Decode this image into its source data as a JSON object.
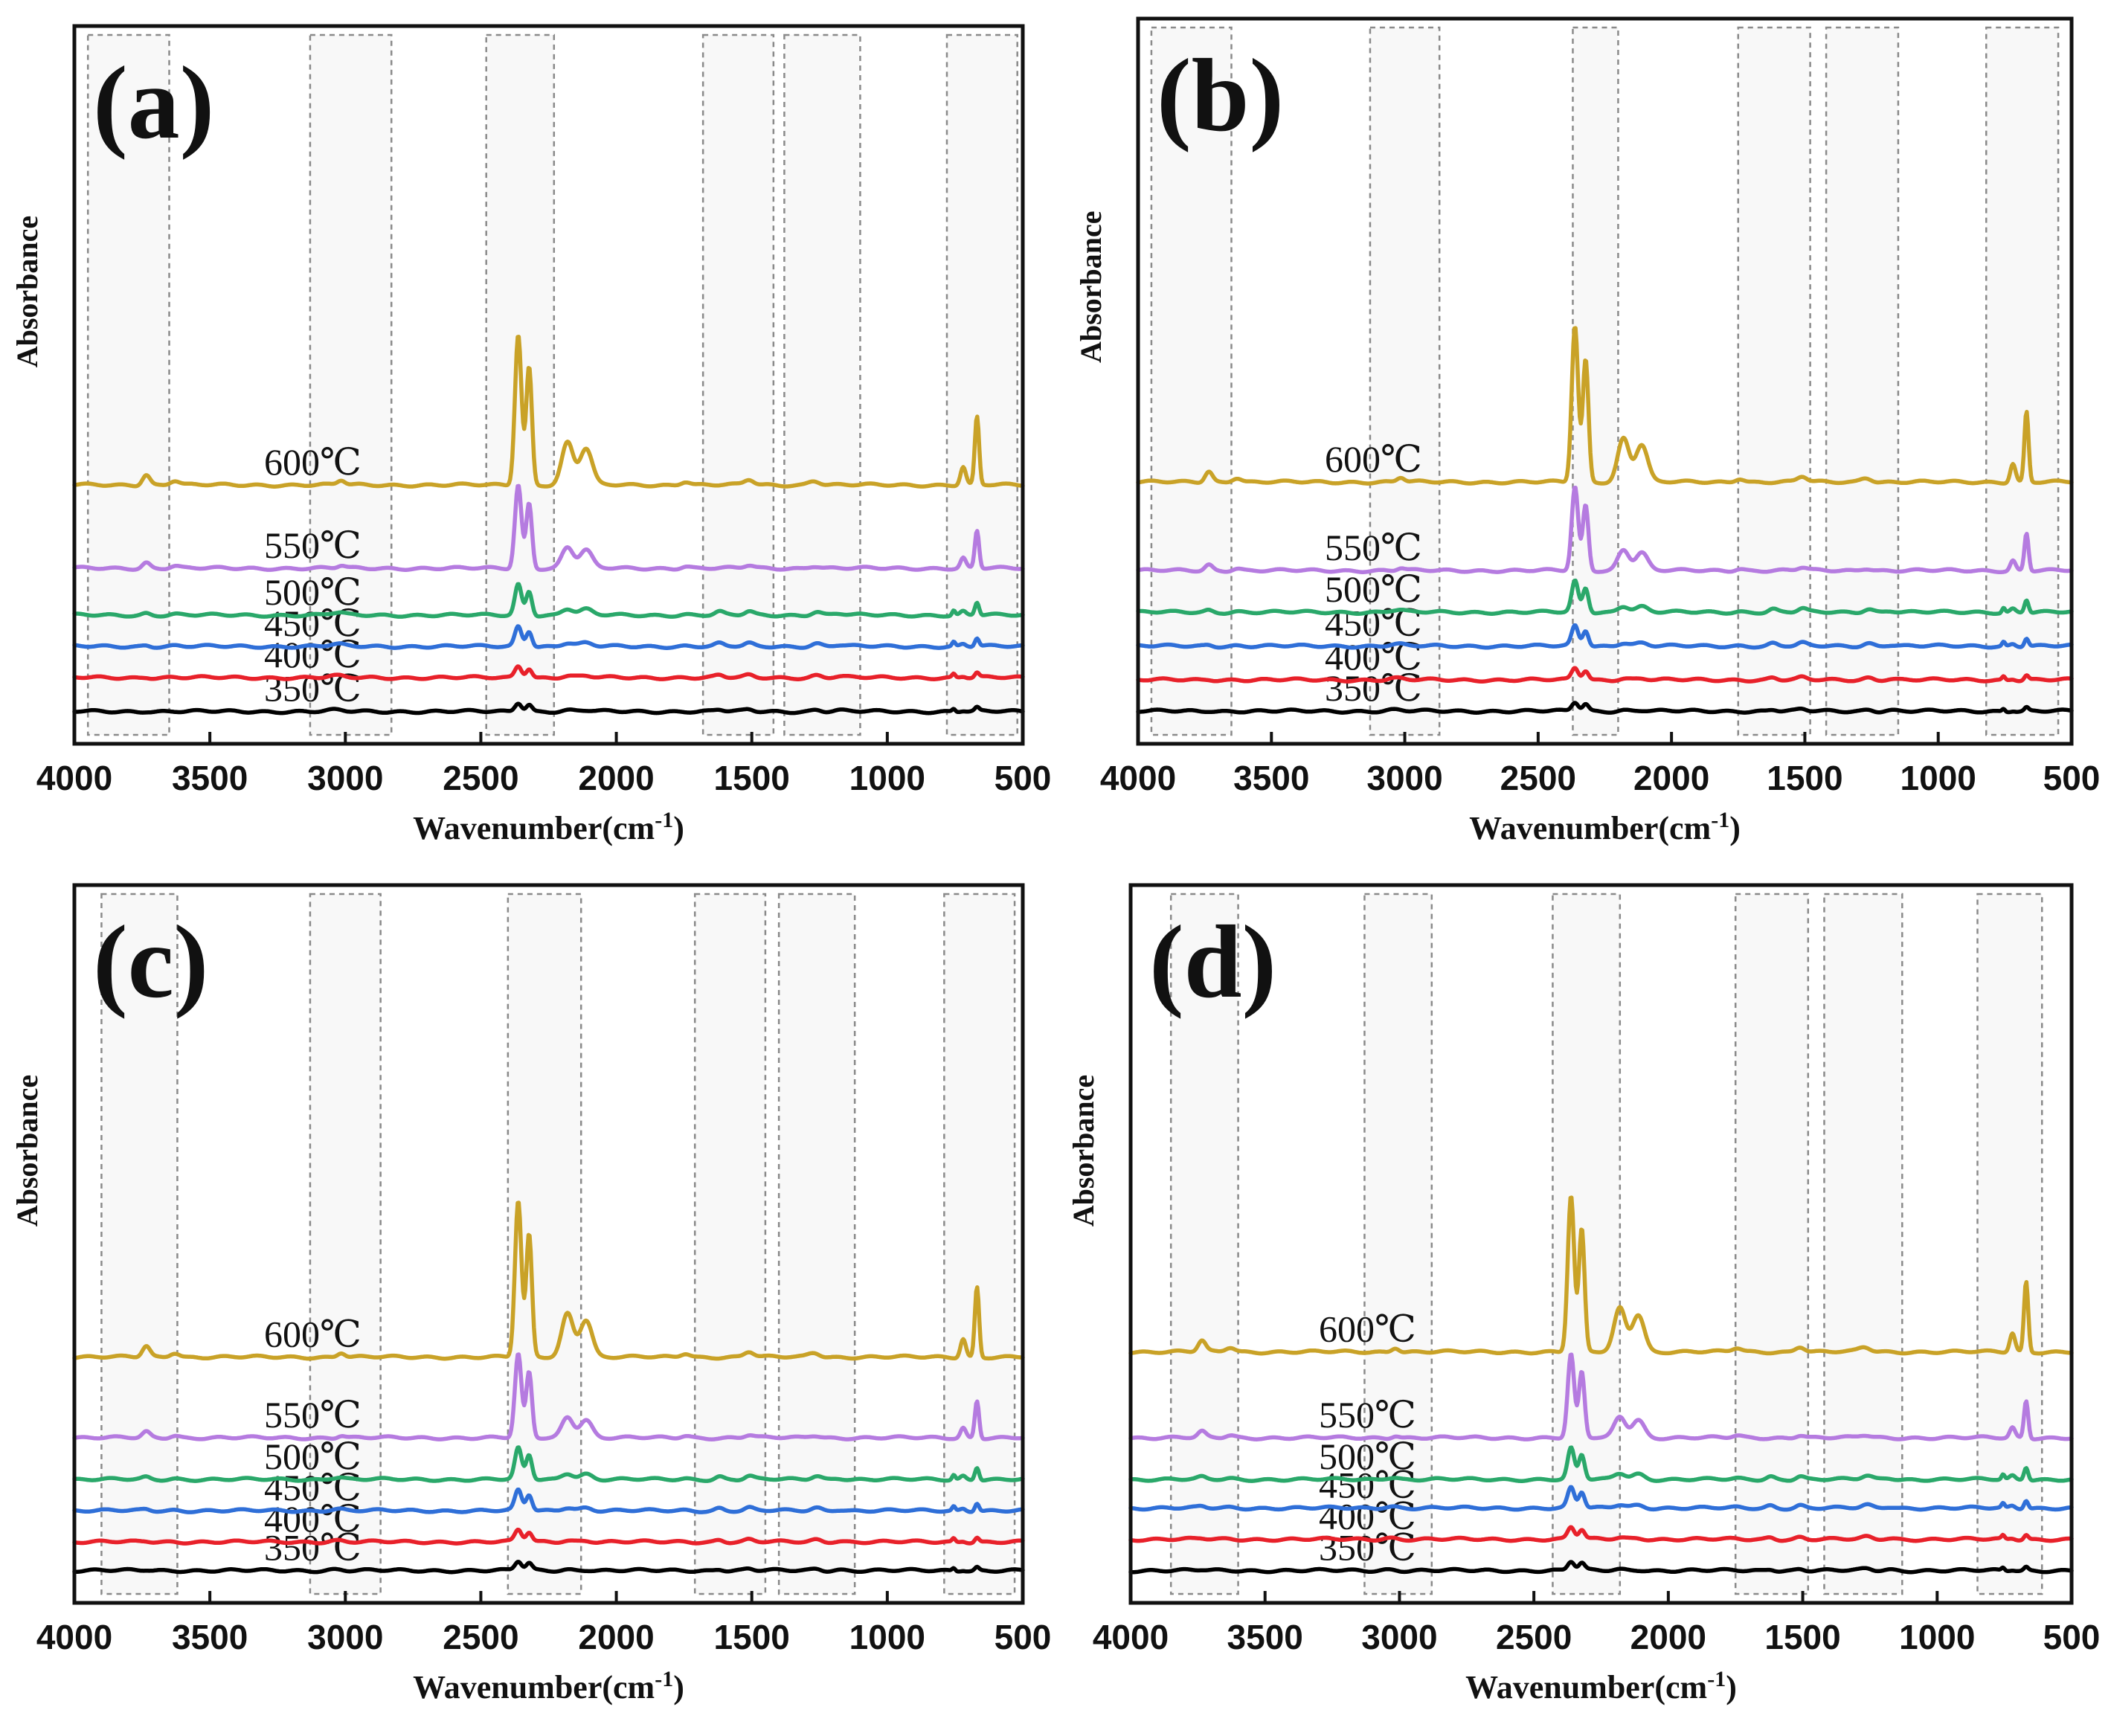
{
  "figure": {
    "title": ""
  },
  "chart_data": [
    {
      "type": "line",
      "panel_label": "(a)",
      "title": "",
      "xlabel": "Wavenumber(cm",
      "xlabel_sup": "-1",
      "xlabel_close": ")",
      "ylabel": "Absorbance",
      "xlim": [
        4000,
        500
      ],
      "x_ticks": [
        "4000",
        "3500",
        "3000",
        "2500",
        "2000",
        "1500",
        "1000",
        "500"
      ],
      "series": [
        {
          "name": "350℃",
          "color": "#000000",
          "offset": 0.0,
          "scale": 0.15
        },
        {
          "name": "400℃",
          "color": "#e8212a",
          "offset": 0.65,
          "scale": 0.2
        },
        {
          "name": "450℃",
          "color": "#2f6fd8",
          "offset": 1.25,
          "scale": 0.35
        },
        {
          "name": "500℃",
          "color": "#2aa86a",
          "offset": 1.85,
          "scale": 0.55
        },
        {
          "name": "550℃",
          "color": "#b57be0",
          "offset": 2.75,
          "scale": 1.6
        },
        {
          "name": "600℃",
          "color": "#c9a227",
          "offset": 4.35,
          "scale": 2.9
        }
      ],
      "highlight_bands": [
        [
          3950,
          3650
        ],
        [
          3130,
          2830
        ],
        [
          2480,
          2230
        ],
        [
          1680,
          1420
        ],
        [
          1380,
          1100
        ],
        [
          780,
          520
        ]
      ]
    },
    {
      "type": "line",
      "panel_label": "(b)",
      "title": "",
      "xlabel": "Wavenumber(cm",
      "xlabel_sup": "-1",
      "xlabel_close": ")",
      "ylabel": "Absorbance",
      "xlim": [
        4000,
        500
      ],
      "x_ticks": [
        "4000",
        "3500",
        "3000",
        "2500",
        "2000",
        "1500",
        "1000",
        "500"
      ],
      "series": [
        {
          "name": "350℃",
          "color": "#000000",
          "offset": 0.0,
          "scale": 0.15
        },
        {
          "name": "400℃",
          "color": "#e8212a",
          "offset": 0.6,
          "scale": 0.2
        },
        {
          "name": "450℃",
          "color": "#2f6fd8",
          "offset": 1.25,
          "scale": 0.35
        },
        {
          "name": "500℃",
          "color": "#2aa86a",
          "offset": 1.9,
          "scale": 0.55
        },
        {
          "name": "550℃",
          "color": "#b57be0",
          "offset": 2.7,
          "scale": 1.6
        },
        {
          "name": "600℃",
          "color": "#c9a227",
          "offset": 4.4,
          "scale": 3.0
        }
      ],
      "highlight_bands": [
        [
          3950,
          3650
        ],
        [
          3130,
          2870
        ],
        [
          2370,
          2200
        ],
        [
          1750,
          1480
        ],
        [
          1420,
          1150
        ],
        [
          820,
          550
        ]
      ]
    },
    {
      "type": "line",
      "panel_label": "(c)",
      "title": "",
      "xlabel": "Wavenumber(cm",
      "xlabel_sup": "-1",
      "xlabel_close": ")",
      "ylabel": "Absorbance",
      "xlim": [
        4000,
        500
      ],
      "x_ticks": [
        "4000",
        "3500",
        "3000",
        "2500",
        "2000",
        "1500",
        "1000",
        "500"
      ],
      "series": [
        {
          "name": "350℃",
          "color": "#000000",
          "offset": 0.0,
          "scale": 0.15
        },
        {
          "name": "400℃",
          "color": "#e8212a",
          "offset": 0.55,
          "scale": 0.2
        },
        {
          "name": "450℃",
          "color": "#2f6fd8",
          "offset": 1.15,
          "scale": 0.35
        },
        {
          "name": "500℃",
          "color": "#2aa86a",
          "offset": 1.75,
          "scale": 0.55
        },
        {
          "name": "550℃",
          "color": "#b57be0",
          "offset": 2.55,
          "scale": 1.6
        },
        {
          "name": "600℃",
          "color": "#c9a227",
          "offset": 4.1,
          "scale": 3.0
        }
      ],
      "highlight_bands": [
        [
          3900,
          3620
        ],
        [
          3130,
          2870
        ],
        [
          2400,
          2130
        ],
        [
          1710,
          1450
        ],
        [
          1400,
          1120
        ],
        [
          790,
          530
        ]
      ]
    },
    {
      "type": "line",
      "panel_label": "(d)",
      "title": "",
      "xlabel": "Wavenumber(cm",
      "xlabel_sup": "-1",
      "xlabel_close": ")",
      "ylabel": "Absorbance",
      "xlim": [
        4000,
        500
      ],
      "x_ticks": [
        "4000",
        "3500",
        "3000",
        "2500",
        "2000",
        "1500",
        "1000",
        "500"
      ],
      "series": [
        {
          "name": "350℃",
          "color": "#000000",
          "offset": 0.0,
          "scale": 0.15
        },
        {
          "name": "400℃",
          "color": "#e8212a",
          "offset": 0.6,
          "scale": 0.2
        },
        {
          "name": "450℃",
          "color": "#2f6fd8",
          "offset": 1.2,
          "scale": 0.35
        },
        {
          "name": "500℃",
          "color": "#2aa86a",
          "offset": 1.75,
          "scale": 0.55
        },
        {
          "name": "550℃",
          "color": "#b57be0",
          "offset": 2.55,
          "scale": 1.6
        },
        {
          "name": "600℃",
          "color": "#c9a227",
          "offset": 4.2,
          "scale": 3.0
        }
      ],
      "highlight_bands": [
        [
          3850,
          3600
        ],
        [
          3130,
          2880
        ],
        [
          2430,
          2180
        ],
        [
          1750,
          1480
        ],
        [
          1420,
          1130
        ],
        [
          850,
          610
        ]
      ]
    }
  ]
}
